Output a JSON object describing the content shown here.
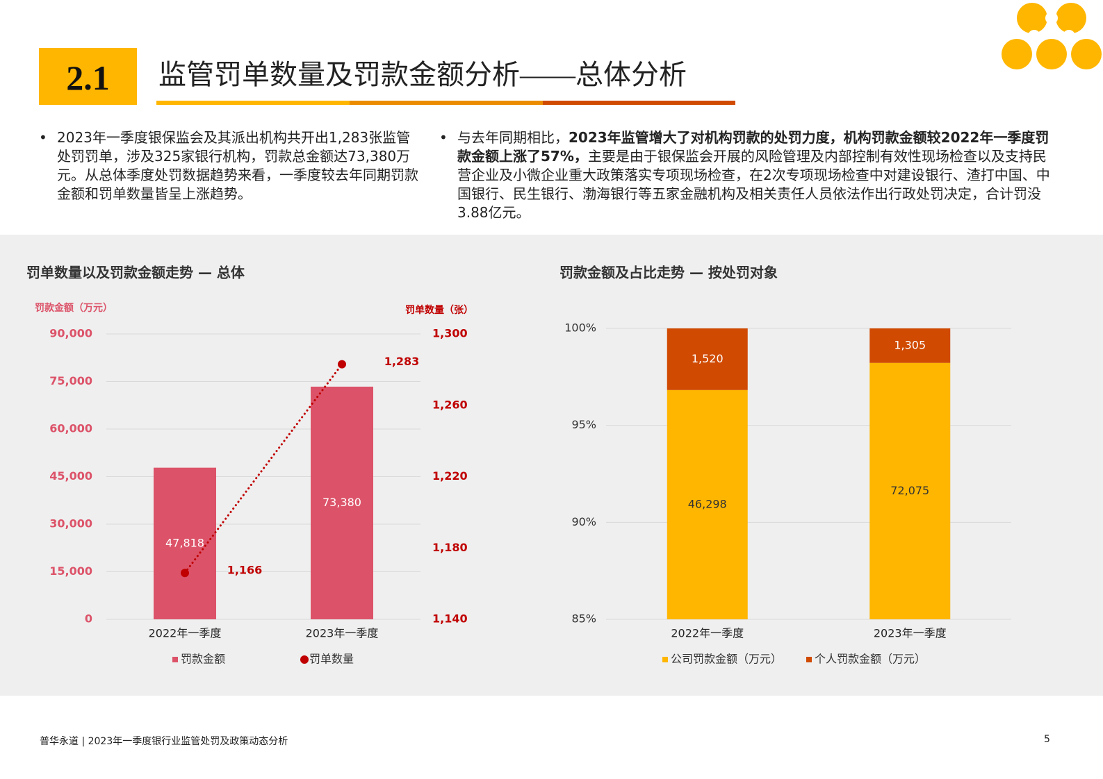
{
  "header": {
    "number": "2.1",
    "title": "监管罚单数量及罚款金额分析——总体分析"
  },
  "bullets": [
    {
      "parts": [
        {
          "text": "2023年一季度银保监会及其派出机构共开出1,283张监管处罚罚单，涉及325家银行机构，罚款总金额达73,380万元。从总体季度处罚数据趋势来看，一季度较去年同期罚款金额和罚单数量皆呈上涨趋势。",
          "bold": false
        }
      ]
    },
    {
      "parts": [
        {
          "text": "与去年同期相比，",
          "bold": false
        },
        {
          "text": "2023年监管增大了对机构罚款的处罚力度，机构罚款金额较2022年一季度罚款金额上涨了57%，",
          "bold": true
        },
        {
          "text": "主要是由于银保监会开展的风险管理及内部控制有效性现场检查以及支持民营企业及小微企业重大政策落实专项现场检查，在2次专项现场检查中对建设银行、渣打中国、中国银行、民生银行、渤海银行等五家金融机构及相关责任人员依法作出行政处罚决定，合计罚没3.88亿元。",
          "bold": false
        }
      ]
    }
  ],
  "chart_data": [
    {
      "type": "combo",
      "title": "罚单数量以及罚款金额走势 — 总体",
      "y_label": "罚款金额（万元）",
      "y2_label": "罚单数量（张）",
      "categories": [
        "2022年一季度",
        "2023年一季度"
      ],
      "series": [
        {
          "name": "罚款金额",
          "type": "bar",
          "color": "#dc5369",
          "label_color": "#ffffff",
          "values": [
            47818,
            73380
          ],
          "value_labels": [
            "47,818",
            "73,380"
          ]
        },
        {
          "name": "罚单数量",
          "type": "line",
          "axis": "y2",
          "color": "#c00000",
          "label_color": "#c00000",
          "values": [
            1166,
            1283
          ],
          "value_labels": [
            "1,166",
            "1,283"
          ]
        }
      ],
      "ylim": [
        0,
        90000
      ],
      "yticks": [
        0,
        {
          "value": 15000,
          "label": "15,000"
        },
        {
          "value": 30000,
          "label": "30,000"
        },
        {
          "value": 45000,
          "label": "45,000"
        },
        {
          "value": 60000,
          "label": "60,000"
        },
        {
          "value": 75000,
          "label": "75,000"
        },
        {
          "value": 90000,
          "label": "90,000"
        }
      ],
      "y2lim": [
        1140,
        1300
      ],
      "y2ticks": [
        {
          "value": 1140,
          "label": "1,140"
        },
        {
          "value": 1180,
          "label": "1,180"
        },
        {
          "value": 1220,
          "label": "1,220"
        },
        {
          "value": 1260,
          "label": "1,260"
        },
        {
          "value": 1300,
          "label": "1,300"
        }
      ],
      "grid": true
    },
    {
      "type": "stacked100",
      "title": "罚款金额及占比走势 — 按处罚对象",
      "categories": [
        "2022年一季度",
        "2023年一季度"
      ],
      "series": [
        {
          "name": "公司罚款金额（万元）",
          "type": "bar",
          "color": "#ffb600",
          "label_color": "#333333",
          "values": [
            46298,
            72075
          ],
          "value_labels": [
            "46,298",
            "72,075"
          ]
        },
        {
          "name": "个人罚款金额（万元）",
          "type": "bar",
          "color": "#d04a02",
          "label_color": "#ffffff",
          "values": [
            1520,
            1305
          ],
          "value_labels": [
            "1,520",
            "1,305"
          ]
        }
      ],
      "ylim": [
        85,
        100
      ],
      "yticks": [
        {
          "value": 85,
          "label": "85%"
        },
        {
          "value": 90,
          "label": "90%"
        },
        {
          "value": 95,
          "label": "95%"
        },
        {
          "value": 100,
          "label": "100%"
        }
      ],
      "grid": true
    }
  ],
  "footer": {
    "text": "普华永道 | 2023年一季度银行业监管处罚及政策动态分析",
    "page": "5"
  }
}
